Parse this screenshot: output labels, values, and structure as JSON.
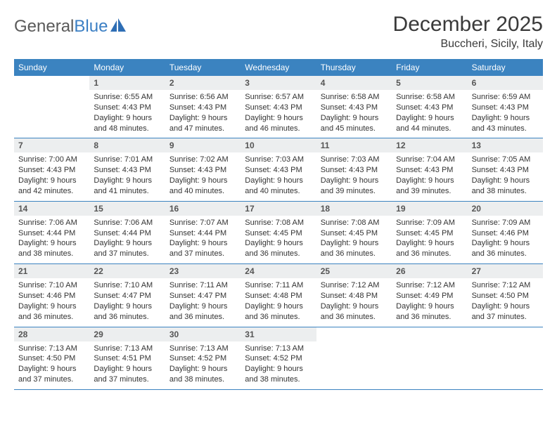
{
  "logo": {
    "text_gray": "General",
    "text_blue": "Blue"
  },
  "title": "December 2025",
  "location": "Buccheri, Sicily, Italy",
  "colors": {
    "header_bg": "#3b83c0",
    "header_text": "#ffffff",
    "daynum_bg": "#eceeef",
    "rule": "#3b83c0",
    "body_text": "#333333"
  },
  "dow": [
    "Sunday",
    "Monday",
    "Tuesday",
    "Wednesday",
    "Thursday",
    "Friday",
    "Saturday"
  ],
  "weeks": [
    [
      {
        "n": "",
        "sr": "",
        "ss": "",
        "dl": ""
      },
      {
        "n": "1",
        "sr": "6:55 AM",
        "ss": "4:43 PM",
        "dl": "9 hours and 48 minutes."
      },
      {
        "n": "2",
        "sr": "6:56 AM",
        "ss": "4:43 PM",
        "dl": "9 hours and 47 minutes."
      },
      {
        "n": "3",
        "sr": "6:57 AM",
        "ss": "4:43 PM",
        "dl": "9 hours and 46 minutes."
      },
      {
        "n": "4",
        "sr": "6:58 AM",
        "ss": "4:43 PM",
        "dl": "9 hours and 45 minutes."
      },
      {
        "n": "5",
        "sr": "6:58 AM",
        "ss": "4:43 PM",
        "dl": "9 hours and 44 minutes."
      },
      {
        "n": "6",
        "sr": "6:59 AM",
        "ss": "4:43 PM",
        "dl": "9 hours and 43 minutes."
      }
    ],
    [
      {
        "n": "7",
        "sr": "7:00 AM",
        "ss": "4:43 PM",
        "dl": "9 hours and 42 minutes."
      },
      {
        "n": "8",
        "sr": "7:01 AM",
        "ss": "4:43 PM",
        "dl": "9 hours and 41 minutes."
      },
      {
        "n": "9",
        "sr": "7:02 AM",
        "ss": "4:43 PM",
        "dl": "9 hours and 40 minutes."
      },
      {
        "n": "10",
        "sr": "7:03 AM",
        "ss": "4:43 PM",
        "dl": "9 hours and 40 minutes."
      },
      {
        "n": "11",
        "sr": "7:03 AM",
        "ss": "4:43 PM",
        "dl": "9 hours and 39 minutes."
      },
      {
        "n": "12",
        "sr": "7:04 AM",
        "ss": "4:43 PM",
        "dl": "9 hours and 39 minutes."
      },
      {
        "n": "13",
        "sr": "7:05 AM",
        "ss": "4:43 PM",
        "dl": "9 hours and 38 minutes."
      }
    ],
    [
      {
        "n": "14",
        "sr": "7:06 AM",
        "ss": "4:44 PM",
        "dl": "9 hours and 38 minutes."
      },
      {
        "n": "15",
        "sr": "7:06 AM",
        "ss": "4:44 PM",
        "dl": "9 hours and 37 minutes."
      },
      {
        "n": "16",
        "sr": "7:07 AM",
        "ss": "4:44 PM",
        "dl": "9 hours and 37 minutes."
      },
      {
        "n": "17",
        "sr": "7:08 AM",
        "ss": "4:45 PM",
        "dl": "9 hours and 36 minutes."
      },
      {
        "n": "18",
        "sr": "7:08 AM",
        "ss": "4:45 PM",
        "dl": "9 hours and 36 minutes."
      },
      {
        "n": "19",
        "sr": "7:09 AM",
        "ss": "4:45 PM",
        "dl": "9 hours and 36 minutes."
      },
      {
        "n": "20",
        "sr": "7:09 AM",
        "ss": "4:46 PM",
        "dl": "9 hours and 36 minutes."
      }
    ],
    [
      {
        "n": "21",
        "sr": "7:10 AM",
        "ss": "4:46 PM",
        "dl": "9 hours and 36 minutes."
      },
      {
        "n": "22",
        "sr": "7:10 AM",
        "ss": "4:47 PM",
        "dl": "9 hours and 36 minutes."
      },
      {
        "n": "23",
        "sr": "7:11 AM",
        "ss": "4:47 PM",
        "dl": "9 hours and 36 minutes."
      },
      {
        "n": "24",
        "sr": "7:11 AM",
        "ss": "4:48 PM",
        "dl": "9 hours and 36 minutes."
      },
      {
        "n": "25",
        "sr": "7:12 AM",
        "ss": "4:48 PM",
        "dl": "9 hours and 36 minutes."
      },
      {
        "n": "26",
        "sr": "7:12 AM",
        "ss": "4:49 PM",
        "dl": "9 hours and 36 minutes."
      },
      {
        "n": "27",
        "sr": "7:12 AM",
        "ss": "4:50 PM",
        "dl": "9 hours and 37 minutes."
      }
    ],
    [
      {
        "n": "28",
        "sr": "7:13 AM",
        "ss": "4:50 PM",
        "dl": "9 hours and 37 minutes."
      },
      {
        "n": "29",
        "sr": "7:13 AM",
        "ss": "4:51 PM",
        "dl": "9 hours and 37 minutes."
      },
      {
        "n": "30",
        "sr": "7:13 AM",
        "ss": "4:52 PM",
        "dl": "9 hours and 38 minutes."
      },
      {
        "n": "31",
        "sr": "7:13 AM",
        "ss": "4:52 PM",
        "dl": "9 hours and 38 minutes."
      },
      {
        "n": "",
        "sr": "",
        "ss": "",
        "dl": ""
      },
      {
        "n": "",
        "sr": "",
        "ss": "",
        "dl": ""
      },
      {
        "n": "",
        "sr": "",
        "ss": "",
        "dl": ""
      }
    ]
  ],
  "labels": {
    "sunrise": "Sunrise:",
    "sunset": "Sunset:",
    "daylight": "Daylight:"
  }
}
